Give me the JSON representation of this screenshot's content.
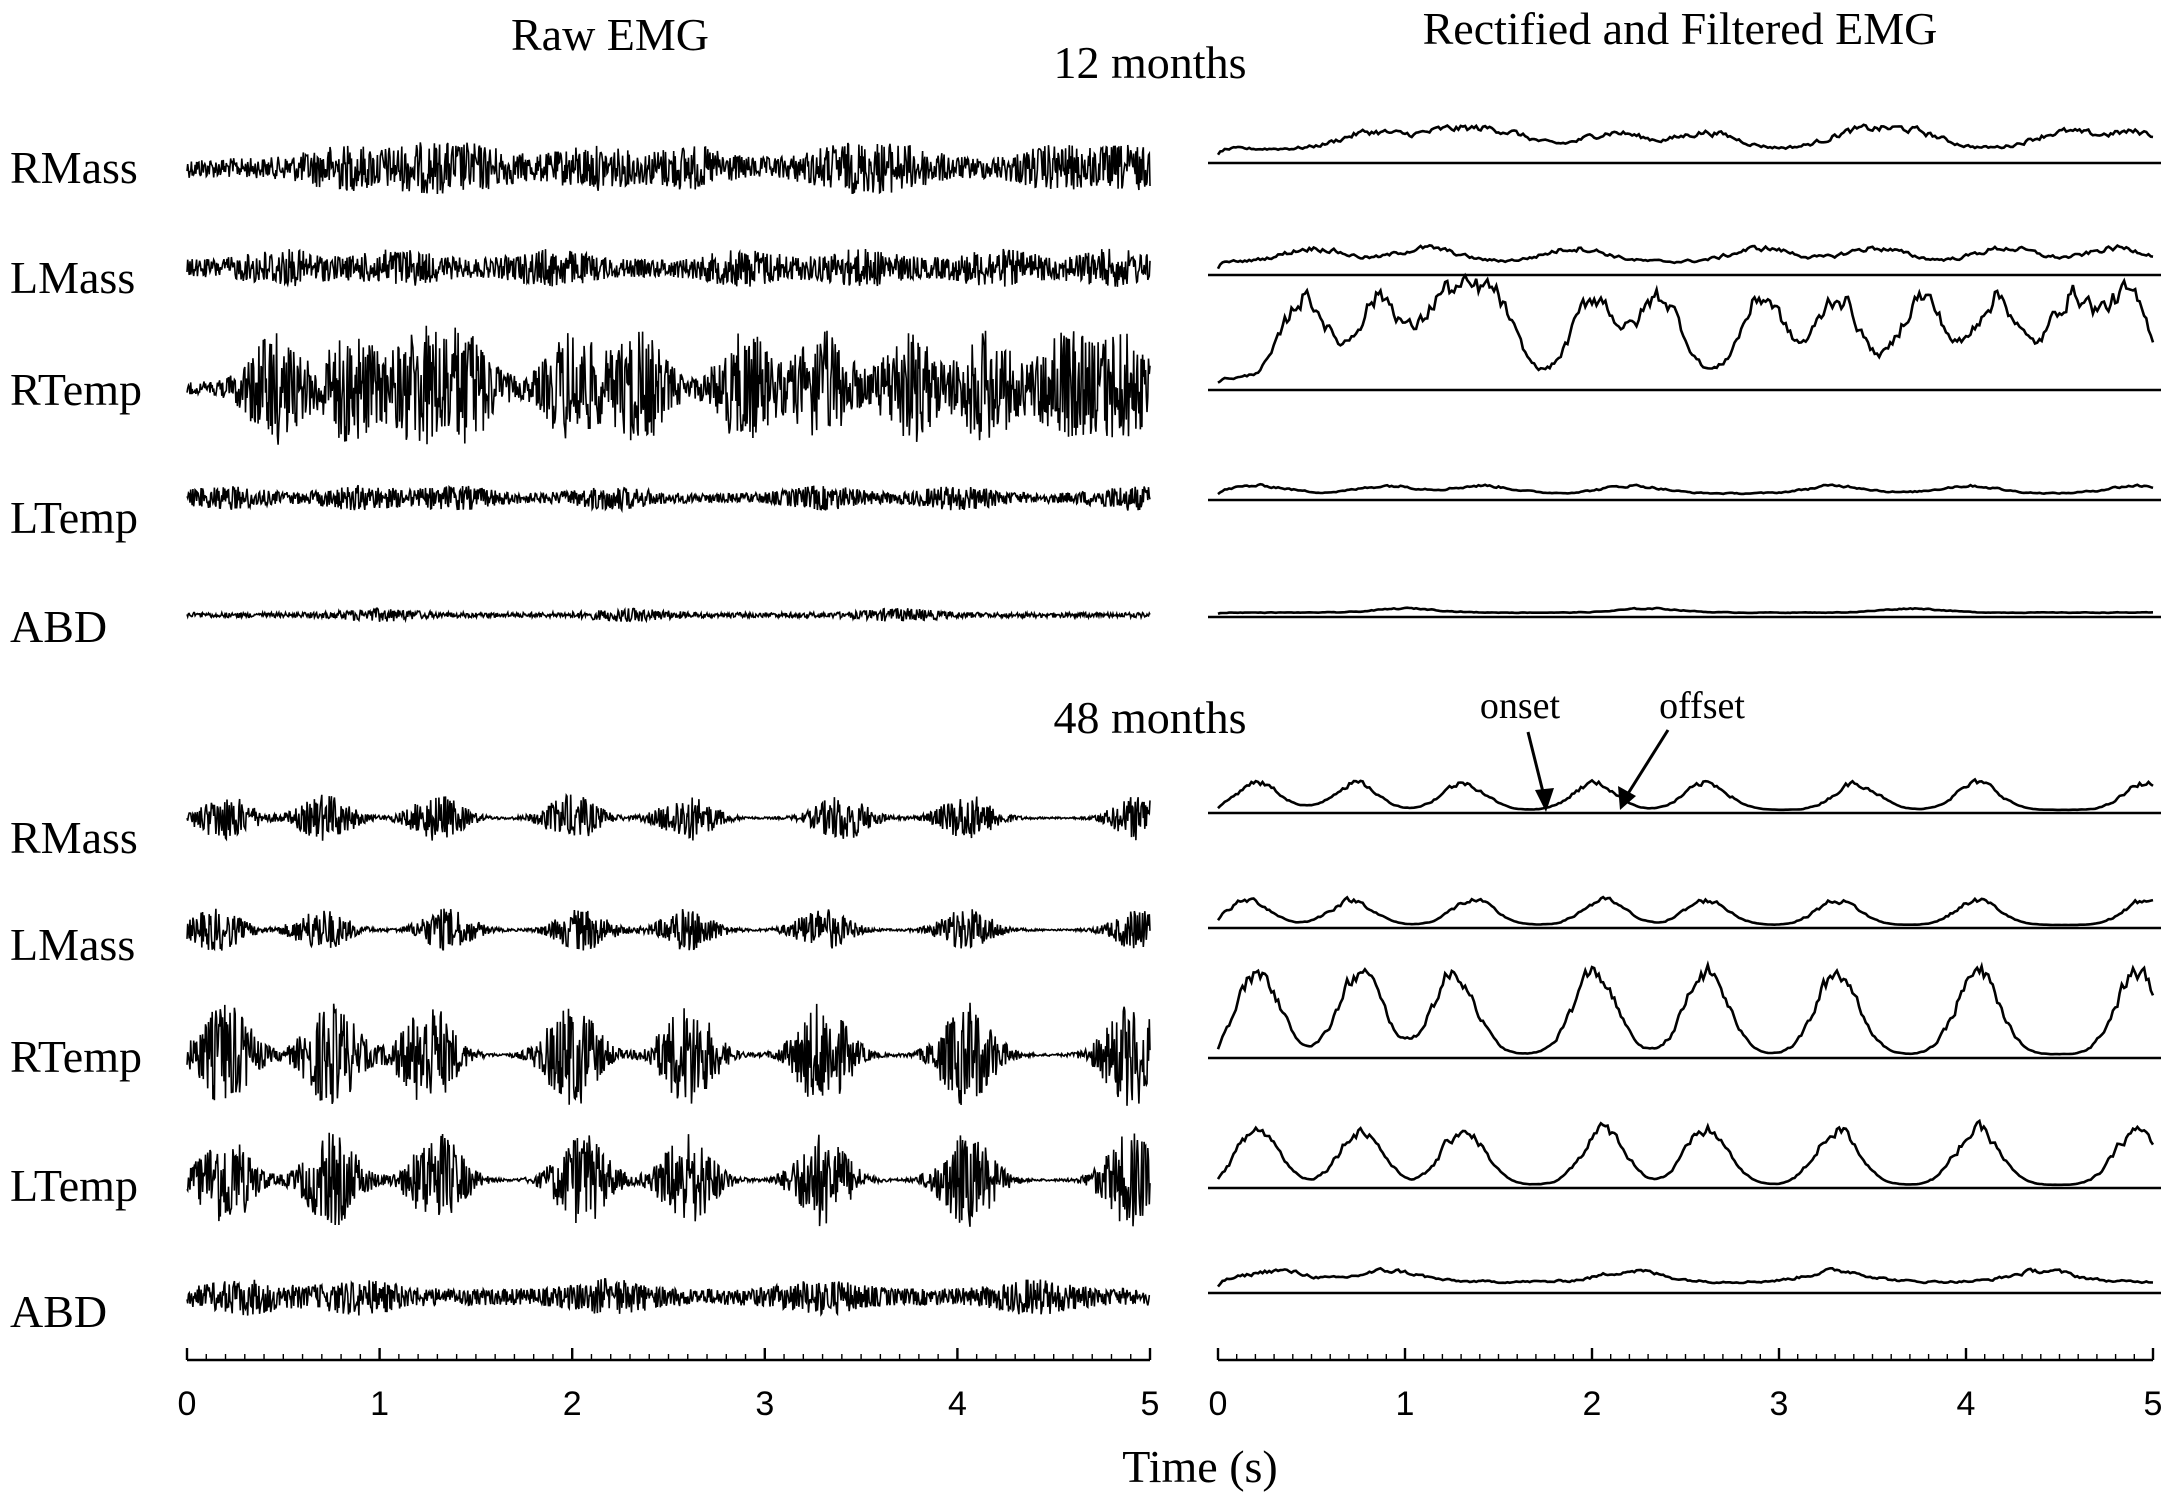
{
  "chart_data": {
    "type": "line",
    "panel_titles": {
      "raw": "Raw EMG",
      "filtered": "Rectified and Filtered EMG"
    },
    "xlabel": "Time (s)",
    "x_unit": "s",
    "xlim": [
      0,
      5
    ],
    "x_ticks": [
      "0",
      "1",
      "2",
      "3",
      "4",
      "5"
    ],
    "annotations": {
      "onset": "onset",
      "offset": "offset"
    },
    "groups": [
      {
        "title": "12 months",
        "channels": [
          {
            "label": "RMass",
            "amp": 0.55,
            "base": 0.45,
            "pattern": "continuous",
            "bursts": [
              0.8,
              1.2,
              1.5,
              2.1,
              2.6,
              3.4,
              3.7,
              4.5,
              4.9
            ]
          },
          {
            "label": "LMass",
            "amp": 0.5,
            "base": 0.5,
            "pattern": "continuous",
            "bursts": [
              0.5,
              1.1,
              1.9,
              2.9,
              3.5,
              4.2,
              4.8
            ]
          },
          {
            "label": "RTemp",
            "amp": 1.0,
            "base": 0.12,
            "pattern": "bursty",
            "bursts": [
              0.45,
              0.85,
              1.2,
              1.45,
              2.0,
              2.35,
              2.9,
              3.3,
              3.75,
              4.15,
              4.55,
              4.85
            ]
          },
          {
            "label": "LTemp",
            "amp": 0.45,
            "base": 0.35,
            "pattern": "continuous",
            "bursts": [
              0.2,
              0.9,
              1.4,
              2.2,
              3.3,
              4.0,
              4.9
            ]
          },
          {
            "label": "ABD",
            "amp": 0.28,
            "base": 0.35,
            "pattern": "continuous",
            "bursts": [
              1.0,
              2.3,
              3.7
            ]
          }
        ]
      },
      {
        "title": "48 months",
        "channels": [
          {
            "label": "RMass",
            "amp": 0.6,
            "base": 0.04,
            "pattern": "bursty",
            "bursts": [
              0.2,
              0.72,
              1.3,
              2.0,
              2.6,
              3.4,
              4.05,
              4.95
            ]
          },
          {
            "label": "LMass",
            "amp": 0.55,
            "base": 0.04,
            "pattern": "bursty",
            "bursts": [
              0.15,
              0.7,
              1.35,
              2.05,
              2.6,
              3.3,
              4.05,
              4.95
            ]
          },
          {
            "label": "RTemp",
            "amp": 1.0,
            "base": 0.02,
            "pattern": "bursty",
            "bursts": [
              0.2,
              0.75,
              1.25,
              2.0,
              2.6,
              3.3,
              4.05,
              4.9
            ]
          },
          {
            "label": "LTemp",
            "amp": 0.9,
            "base": 0.02,
            "pattern": "bursty",
            "bursts": [
              0.2,
              0.75,
              1.3,
              2.05,
              2.6,
              3.3,
              4.05,
              4.9
            ]
          },
          {
            "label": "ABD",
            "amp": 0.5,
            "base": 0.5,
            "pattern": "continuous",
            "bursts": [
              0.3,
              0.9,
              2.2,
              3.3,
              4.4
            ]
          }
        ]
      }
    ]
  }
}
